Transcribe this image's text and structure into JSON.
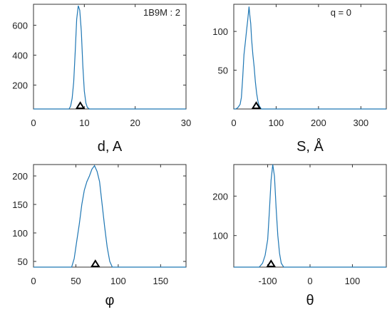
{
  "chart_data": [
    {
      "type": "line",
      "xlabel": "d, A",
      "annotation": "1B9M : 2",
      "xlim": [
        0,
        30
      ],
      "ylim": [
        40,
        740
      ],
      "xticks": [
        0,
        10,
        20,
        30
      ],
      "yticks": [
        200,
        400,
        600
      ],
      "marker_x": 9.2,
      "series": [
        {
          "x": [
            0,
            7.0,
            7.3,
            7.6,
            7.9,
            8.2,
            8.5,
            8.8,
            9.1,
            9.4,
            9.7,
            10.0,
            10.3,
            10.6,
            11.0,
            30
          ],
          "y": [
            40,
            40,
            60,
            110,
            220,
            420,
            640,
            730,
            700,
            560,
            330,
            160,
            80,
            50,
            40,
            40
          ]
        }
      ],
      "color": "#1f77b4"
    },
    {
      "type": "line",
      "xlabel": "S, Å",
      "annotation": "q = 0",
      "xlim": [
        0,
        360
      ],
      "ylim": [
        0,
        135
      ],
      "xticks": [
        0,
        100,
        200,
        300
      ],
      "yticks": [
        50,
        100
      ],
      "marker_x": 53,
      "series": [
        {
          "x": [
            0,
            5,
            10,
            15,
            18,
            21,
            24,
            27,
            30,
            33,
            36,
            38,
            40,
            42,
            45,
            48,
            51,
            54,
            57,
            60,
            65,
            360
          ],
          "y": [
            0,
            0,
            2,
            6,
            15,
            40,
            70,
            85,
            100,
            115,
            132,
            120,
            110,
            90,
            70,
            55,
            35,
            20,
            10,
            4,
            0,
            0
          ]
        }
      ],
      "color": "#1f77b4"
    },
    {
      "type": "line",
      "xlabel": "φ",
      "xlim": [
        0,
        180
      ],
      "ylim": [
        40,
        220
      ],
      "xticks": [
        0,
        50,
        100,
        150
      ],
      "yticks": [
        50,
        100,
        150,
        200
      ],
      "marker_x": 73,
      "series": [
        {
          "x": [
            0,
            45,
            48,
            51,
            54,
            57,
            60,
            63,
            66,
            69,
            72,
            75,
            78,
            81,
            84,
            87,
            90,
            93,
            180
          ],
          "y": [
            40,
            40,
            55,
            85,
            115,
            150,
            175,
            190,
            200,
            212,
            218,
            208,
            190,
            150,
            110,
            75,
            50,
            40,
            40
          ]
        }
      ],
      "color": "#1f77b4"
    },
    {
      "type": "line",
      "xlabel": "θ",
      "xlim": [
        -180,
        180
      ],
      "ylim": [
        20,
        280
      ],
      "xticks": [
        -100,
        0,
        100
      ],
      "yticks": [
        100,
        200
      ],
      "marker_x": -92,
      "series": [
        {
          "x": [
            -180,
            -120,
            -112,
            -106,
            -100,
            -96,
            -92,
            -88,
            -84,
            -80,
            -76,
            -72,
            -68,
            -62,
            180
          ],
          "y": [
            20,
            20,
            30,
            50,
            90,
            160,
            240,
            280,
            250,
            170,
            100,
            55,
            30,
            20,
            20
          ]
        }
      ],
      "color": "#1f77b4"
    }
  ]
}
